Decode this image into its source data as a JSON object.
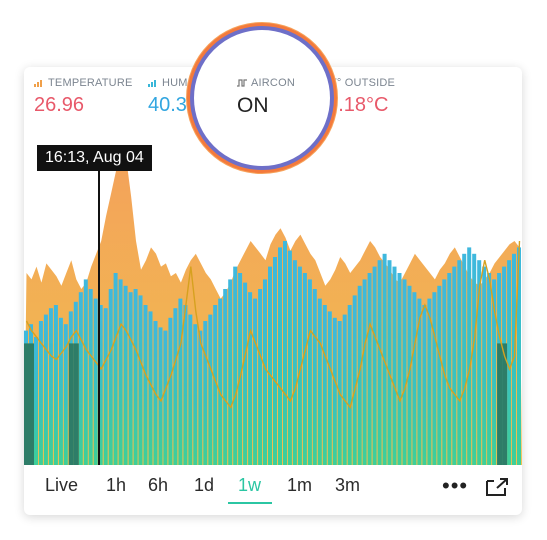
{
  "stats": {
    "temperature": {
      "label": "TEMPERATURE",
      "value": "26.96",
      "color": "#e8596a",
      "icon": "bar-chart-icon"
    },
    "humidity": {
      "label": "HUMIDITY",
      "value": "40.39",
      "color": "#32a6e0",
      "icon": "bar-chart-icon"
    },
    "aircon": {
      "label": "AIRCON",
      "value": "ON",
      "color": "#222222",
      "icon": "step-wave-icon"
    },
    "outside": {
      "label": "T° OUTSIDE",
      "value": "17.18°C",
      "color": "#e8596a",
      "icon": "line-icon"
    }
  },
  "tooltip": "16:13, Aug 04",
  "tabs": [
    {
      "label": "Live"
    },
    {
      "label": "1h"
    },
    {
      "label": "6h"
    },
    {
      "label": "1d"
    },
    {
      "label": "1w",
      "active": true
    },
    {
      "label": "1m"
    },
    {
      "label": "3m"
    }
  ],
  "more_label": "•••",
  "colors": {
    "accent": "#2bc6a3",
    "orange": "#f0a04a",
    "blue": "#39b6d8",
    "dark": "#2e7d68"
  },
  "chart_data": {
    "type": "area",
    "series": [
      {
        "values": [
          60,
          58,
          62,
          57,
          63,
          61,
          59,
          56,
          60,
          64,
          58,
          55,
          57,
          62,
          66,
          70,
          78,
          85,
          92,
          99,
          96,
          84,
          70,
          61,
          64,
          68,
          66,
          62,
          63,
          59,
          60,
          57,
          61,
          64,
          66,
          63,
          60,
          58,
          55,
          52,
          54,
          57,
          61,
          64,
          67,
          70,
          68,
          66,
          64,
          69,
          72,
          74,
          71,
          67,
          70,
          72,
          69,
          66,
          64,
          60,
          56,
          58,
          61,
          65,
          63,
          60,
          62,
          64,
          67,
          70,
          68,
          65,
          63,
          61,
          58,
          57,
          60,
          63,
          66,
          64,
          62,
          60,
          58,
          61,
          63,
          66,
          68,
          65,
          62,
          59,
          57,
          56,
          58,
          60,
          63,
          65,
          67,
          69,
          70,
          68
        ]
      },
      {
        "values": [
          42,
          44,
          40,
          45,
          47,
          49,
          50,
          46,
          44,
          48,
          51,
          54,
          58,
          55,
          52,
          50,
          49,
          55,
          60,
          58,
          56,
          54,
          55,
          53,
          50,
          48,
          45,
          43,
          42,
          46,
          49,
          52,
          50,
          47,
          44,
          42,
          45,
          47,
          50,
          52,
          55,
          58,
          62,
          60,
          57,
          54,
          52,
          55,
          58,
          62,
          65,
          68,
          70,
          67,
          64,
          62,
          60,
          58,
          55,
          52,
          50,
          48,
          46,
          45,
          47,
          50,
          53,
          56,
          58,
          60,
          62,
          64,
          66,
          64,
          62,
          60,
          58,
          56,
          54,
          52,
          50,
          52,
          54,
          56,
          58,
          60,
          62,
          64,
          66,
          68,
          66,
          64,
          62,
          60,
          58,
          60,
          62,
          64,
          66,
          68
        ]
      },
      {
        "values": [
          45,
          42,
          40,
          38,
          36,
          34,
          33,
          35,
          37,
          40,
          42,
          39,
          36,
          34,
          32,
          30,
          33,
          36,
          40,
          44,
          42,
          39,
          36,
          32,
          28,
          25,
          22,
          20,
          24,
          28,
          33,
          38,
          50,
          62,
          48,
          38,
          34,
          30,
          26,
          22,
          20,
          18,
          22,
          28,
          35,
          42,
          38,
          34,
          30,
          28,
          26,
          24,
          22,
          20,
          24,
          30,
          36,
          42,
          40,
          38,
          34,
          30,
          26,
          22,
          20,
          18,
          24,
          30,
          38,
          44,
          40,
          36,
          32,
          28,
          24,
          20,
          24,
          30,
          38,
          46,
          50,
          46,
          40,
          34,
          28,
          24,
          22,
          20,
          24,
          30,
          40,
          56,
          64,
          58,
          48,
          40,
          34,
          30,
          34,
          70
        ]
      },
      {
        "values": [
          1,
          1,
          0,
          0,
          0,
          0,
          0,
          0,
          0,
          1,
          1,
          0,
          0,
          0,
          0,
          0,
          0,
          0,
          0,
          0,
          0,
          0,
          0,
          0,
          0,
          0,
          0,
          0,
          0,
          0,
          0,
          0,
          0,
          0,
          0,
          0,
          0,
          0,
          0,
          0,
          0,
          0,
          0,
          0,
          0,
          0,
          0,
          0,
          0,
          0,
          0,
          0,
          0,
          0,
          0,
          0,
          0,
          0,
          0,
          0,
          0,
          0,
          0,
          0,
          0,
          0,
          0,
          0,
          0,
          0,
          0,
          0,
          0,
          0,
          0,
          0,
          0,
          0,
          0,
          0,
          0,
          0,
          0,
          0,
          0,
          0,
          0,
          0,
          0,
          0,
          0,
          0,
          0,
          0,
          0,
          1,
          1,
          0,
          0,
          0
        ]
      }
    ]
  }
}
